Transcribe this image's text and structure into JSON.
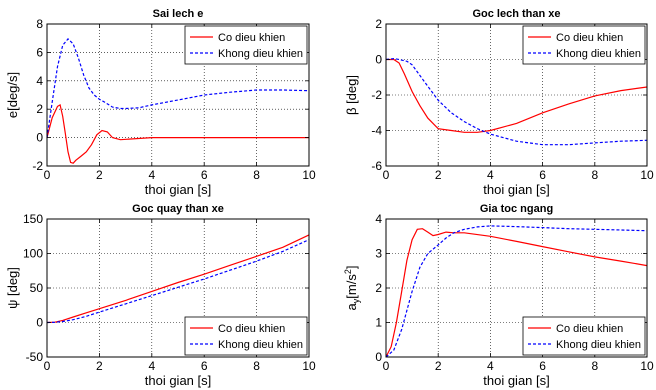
{
  "colors": {
    "series1": "#ff0000",
    "series2": "#0000ff",
    "grid": "#000000",
    "axis": "#000000"
  },
  "chart_data": [
    {
      "type": "line",
      "title": "Sai lech e",
      "xlabel": "thoi gian [s]",
      "ylabel": "e[deg/s]",
      "xlim": [
        0,
        10
      ],
      "ylim": [
        -2,
        8
      ],
      "xticks": [
        0,
        2,
        4,
        6,
        8,
        10
      ],
      "yticks": [
        -2,
        0,
        2,
        4,
        6,
        8
      ],
      "grid": true,
      "legend": "top-right",
      "series": [
        {
          "name": "Co dieu khien",
          "color": "#ff0000",
          "dash": "solid",
          "x": [
            0,
            0.2,
            0.4,
            0.5,
            0.6,
            0.7,
            0.8,
            0.9,
            1.0,
            1.1,
            1.3,
            1.5,
            1.7,
            1.9,
            2.1,
            2.3,
            2.5,
            2.8,
            3.2,
            4,
            5,
            6,
            7,
            8,
            9,
            10
          ],
          "y": [
            0,
            1.4,
            2.2,
            2.3,
            1.5,
            0.3,
            -1.0,
            -1.75,
            -1.8,
            -1.6,
            -1.3,
            -1.0,
            -0.5,
            0.2,
            0.5,
            0.4,
            0.0,
            -0.15,
            -0.1,
            0.0,
            0.0,
            0.0,
            0.0,
            0.0,
            0.0,
            0.0
          ]
        },
        {
          "name": "Khong dieu khien",
          "color": "#0000ff",
          "dash": "dashed",
          "x": [
            0,
            0.2,
            0.4,
            0.6,
            0.8,
            1.0,
            1.2,
            1.4,
            1.6,
            1.8,
            2.0,
            2.2,
            2.5,
            2.8,
            3.0,
            3.5,
            4,
            5,
            6,
            7,
            8,
            9,
            10
          ],
          "y": [
            0,
            2.5,
            5.0,
            6.5,
            6.95,
            6.6,
            5.6,
            4.4,
            3.5,
            3.0,
            2.7,
            2.5,
            2.15,
            2.05,
            2.05,
            2.1,
            2.3,
            2.65,
            3.0,
            3.2,
            3.35,
            3.35,
            3.3
          ]
        }
      ]
    },
    {
      "type": "line",
      "title": "Goc lech than xe",
      "xlabel": "thoi gian [s]",
      "ylabel": "β [deg]",
      "xlim": [
        0,
        10
      ],
      "ylim": [
        -6,
        2
      ],
      "xticks": [
        0,
        2,
        4,
        6,
        8,
        10
      ],
      "yticks": [
        -6,
        -4,
        -2,
        0,
        2
      ],
      "grid": true,
      "legend": "top-right",
      "series": [
        {
          "name": "Co dieu khien",
          "color": "#ff0000",
          "dash": "solid",
          "x": [
            0,
            0.3,
            0.5,
            0.7,
            1.0,
            1.3,
            1.6,
            2.0,
            2.5,
            3.0,
            3.5,
            4.0,
            5.0,
            6.0,
            7.0,
            8.0,
            9.0,
            10.0
          ],
          "y": [
            0,
            0,
            -0.2,
            -0.8,
            -1.8,
            -2.6,
            -3.3,
            -3.9,
            -4.0,
            -4.1,
            -4.1,
            -4.0,
            -3.6,
            -3.0,
            -2.5,
            -2.05,
            -1.75,
            -1.55
          ]
        },
        {
          "name": "Khong dieu khien",
          "color": "#0000ff",
          "dash": "dashed",
          "x": [
            0,
            0.3,
            0.5,
            0.8,
            1.0,
            1.5,
            2.0,
            2.5,
            3.0,
            3.5,
            4.0,
            5.0,
            6.0,
            7.0,
            8.0,
            9.0,
            10.0
          ],
          "y": [
            0,
            0.05,
            0,
            -0.1,
            -0.3,
            -1.3,
            -2.3,
            -3.0,
            -3.5,
            -3.9,
            -4.2,
            -4.6,
            -4.8,
            -4.8,
            -4.7,
            -4.6,
            -4.55
          ]
        }
      ]
    },
    {
      "type": "line",
      "title": "Goc quay than xe",
      "xlabel": "thoi gian [s]",
      "ylabel": "ψ [deg]",
      "xlim": [
        0,
        10
      ],
      "ylim": [
        -50,
        150
      ],
      "xticks": [
        0,
        2,
        4,
        6,
        8,
        10
      ],
      "yticks": [
        -50,
        0,
        50,
        100,
        150
      ],
      "grid": true,
      "legend": "bottom-right",
      "series": [
        {
          "name": "Co dieu khien",
          "color": "#ff0000",
          "dash": "solid",
          "x": [
            0,
            0.3,
            0.6,
            1.0,
            1.5,
            2,
            3,
            4,
            5,
            6,
            7,
            8,
            9,
            10
          ],
          "y": [
            0,
            0.5,
            3,
            8,
            14,
            20,
            32,
            45,
            58,
            70,
            83,
            96,
            109,
            127
          ]
        },
        {
          "name": "Khong dieu khien",
          "color": "#0000ff",
          "dash": "dashed",
          "x": [
            0,
            0.3,
            0.6,
            1.0,
            1.5,
            2,
            3,
            4,
            5,
            6,
            7,
            8,
            9,
            10
          ],
          "y": [
            0,
            0.3,
            1.5,
            4,
            9,
            15,
            27,
            39,
            51,
            63,
            76,
            89,
            103,
            120
          ]
        }
      ]
    },
    {
      "type": "line",
      "title": "Gia toc ngang",
      "xlabel": "thoi gian [s]",
      "ylabel": "a",
      "ylabel_sub": "y",
      "ylabel_unit": "[m/s",
      "ylabel_sup": "2",
      "ylabel_end": "]",
      "xlim": [
        0,
        10
      ],
      "ylim": [
        0,
        4
      ],
      "xticks": [
        0,
        2,
        4,
        6,
        8,
        10
      ],
      "yticks": [
        0,
        1,
        2,
        3,
        4
      ],
      "grid": true,
      "legend": "bottom-right",
      "series": [
        {
          "name": "Co dieu khien",
          "color": "#ff0000",
          "dash": "solid",
          "x": [
            0,
            0.2,
            0.4,
            0.6,
            0.8,
            1.0,
            1.2,
            1.4,
            1.6,
            1.8,
            2.0,
            2.3,
            2.6,
            3,
            4,
            5,
            6,
            7,
            8,
            9,
            10
          ],
          "y": [
            0,
            0.3,
            1.0,
            1.9,
            2.8,
            3.4,
            3.7,
            3.72,
            3.62,
            3.52,
            3.55,
            3.62,
            3.6,
            3.6,
            3.5,
            3.35,
            3.2,
            3.05,
            2.9,
            2.78,
            2.65
          ]
        },
        {
          "name": "Khong dieu khien",
          "color": "#0000ff",
          "dash": "dashed",
          "x": [
            0,
            0.3,
            0.6,
            1.0,
            1.3,
            1.6,
            2.0,
            2.3,
            2.6,
            3.0,
            3.5,
            4.0,
            5,
            6,
            7,
            8,
            9,
            10
          ],
          "y": [
            0,
            0.2,
            0.8,
            1.9,
            2.6,
            3.0,
            3.25,
            3.45,
            3.6,
            3.7,
            3.77,
            3.8,
            3.78,
            3.75,
            3.72,
            3.7,
            3.68,
            3.66
          ]
        }
      ]
    }
  ]
}
